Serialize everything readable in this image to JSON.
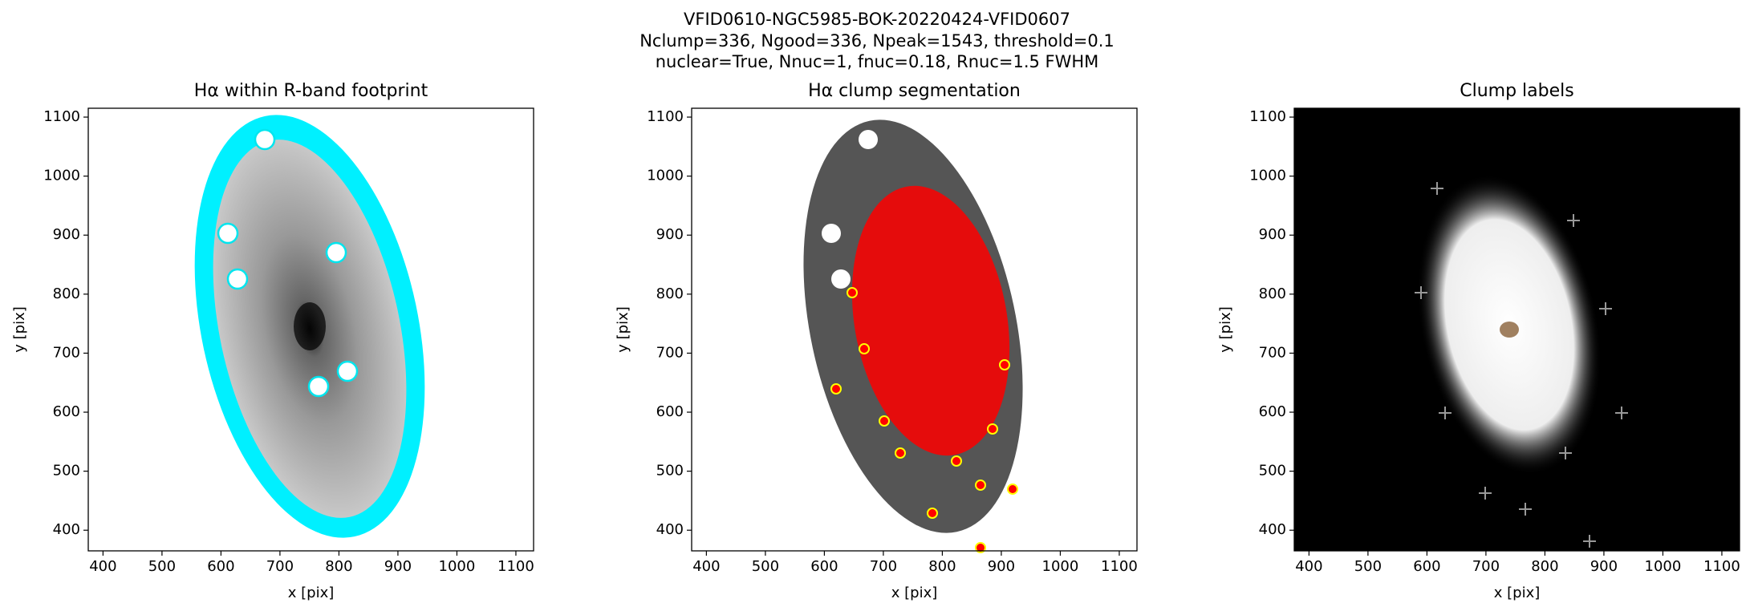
{
  "title": [
    "VFID0610-NGC5985-BOK-20220424-VFID0607",
    "Nclump=336, Ngood=336, Npeak=1543, threshold=0.1",
    "nuclear=True, Nnuc=1, fnuc=0.18, Rnuc=1.5 FWHM"
  ],
  "chart_data": [
    {
      "type": "image",
      "title": "Hα within R-band footprint",
      "xlabel": "x [pix]",
      "ylabel": "y [pix]",
      "xlim": [
        375,
        1130
      ],
      "ylim": [
        365,
        1115
      ],
      "xticks": [
        400,
        500,
        600,
        700,
        800,
        900,
        1000,
        1100
      ],
      "yticks": [
        400,
        500,
        600,
        700,
        800,
        900,
        1000,
        1100
      ]
    },
    {
      "type": "image",
      "title": "Hα clump segmentation",
      "xlabel": "x [pix]",
      "ylabel": "y [pix]",
      "xlim": [
        375,
        1130
      ],
      "ylim": [
        365,
        1115
      ],
      "xticks": [
        400,
        500,
        600,
        700,
        800,
        900,
        1000,
        1100
      ],
      "yticks": [
        400,
        500,
        600,
        700,
        800,
        900,
        1000,
        1100
      ]
    },
    {
      "type": "image",
      "title": "Clump labels",
      "xlabel": "x [pix]",
      "ylabel": "y [pix]",
      "xlim": [
        375,
        1130
      ],
      "ylim": [
        365,
        1115
      ],
      "xticks": [
        400,
        500,
        600,
        700,
        800,
        900,
        1000,
        1100
      ],
      "yticks": [
        400,
        500,
        600,
        700,
        800,
        900,
        1000,
        1100
      ]
    }
  ]
}
